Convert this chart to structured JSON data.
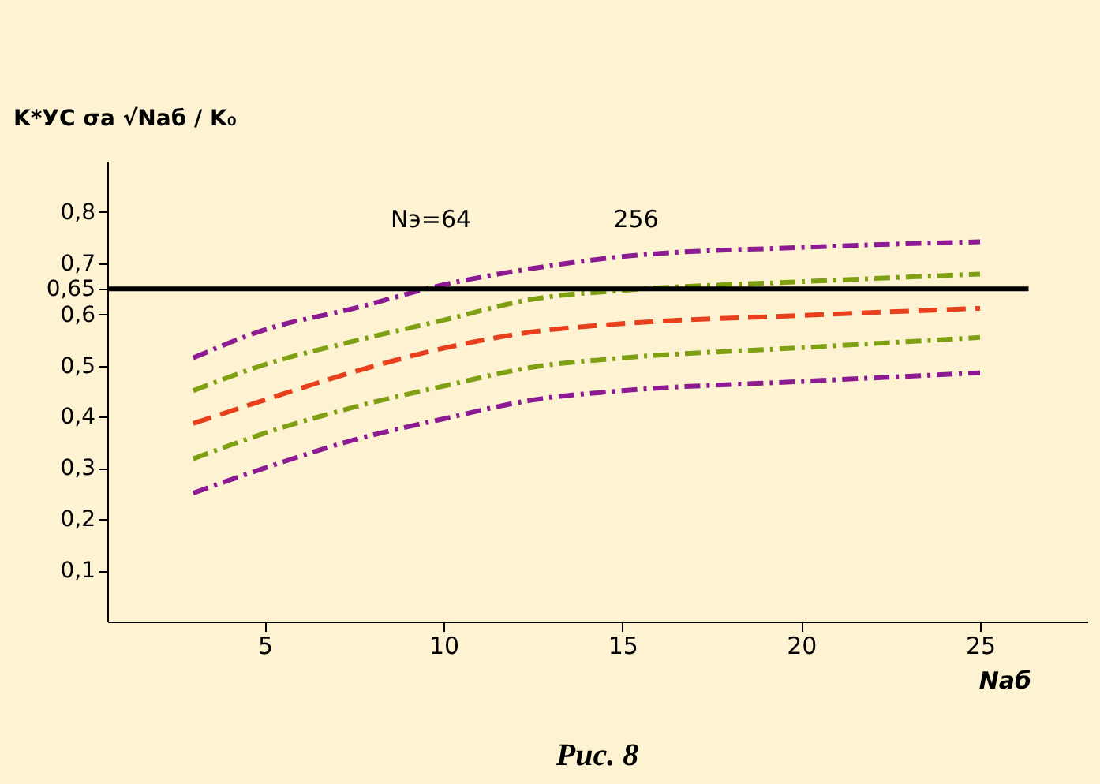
{
  "chart_data": {
    "type": "line",
    "xlabel": "Nаб",
    "ylabel": "K*УС σа √Nаб / K₀",
    "x": [
      3,
      5,
      7.5,
      10,
      12.5,
      15,
      20,
      25
    ],
    "series": [
      {
        "color": "#8b1a93",
        "line_style": "dashdot",
        "values": [
          0.515,
          0.57,
          0.612,
          0.658,
          0.69,
          0.713,
          0.731,
          0.742
        ]
      },
      {
        "color": "#7fa012",
        "line_style": "dashdot",
        "values": [
          0.451,
          0.502,
          0.548,
          0.589,
          0.63,
          0.647,
          0.664,
          0.679
        ]
      },
      {
        "color": "#e8401c",
        "line_style": "dashed",
        "values": [
          0.387,
          0.433,
          0.488,
          0.534,
          0.566,
          0.582,
          0.598,
          0.612
        ]
      },
      {
        "color": "#7fa012",
        "line_style": "dashdot",
        "values": [
          0.318,
          0.368,
          0.419,
          0.46,
          0.497,
          0.515,
          0.535,
          0.555
        ]
      },
      {
        "color": "#8b1a93",
        "line_style": "dashdot",
        "values": [
          0.251,
          0.3,
          0.355,
          0.396,
          0.433,
          0.451,
          0.469,
          0.486
        ]
      }
    ],
    "xlim": [
      0.6,
      28
    ],
    "ylim": [
      0,
      0.9
    ],
    "xticks": [
      5,
      10,
      15,
      20,
      25
    ],
    "yticks": [
      {
        "value": 0.1,
        "label": "0,1"
      },
      {
        "value": 0.2,
        "label": "0,2"
      },
      {
        "value": 0.3,
        "label": "0,3"
      },
      {
        "value": 0.4,
        "label": "0,4"
      },
      {
        "value": 0.5,
        "label": "0,5"
      },
      {
        "value": 0.6,
        "label": "0,6"
      },
      {
        "value": 0.65,
        "label": "0,65"
      },
      {
        "value": 0.7,
        "label": "0,7"
      },
      {
        "value": 0.8,
        "label": "0,8"
      }
    ],
    "ref_lines": [
      {
        "axis": "y",
        "value": 0.65,
        "color": "#000000",
        "line_style": "solid"
      }
    ],
    "annotations": [
      "Рис. 8",
      "Nэ=64",
      "256"
    ],
    "grid": false
  }
}
